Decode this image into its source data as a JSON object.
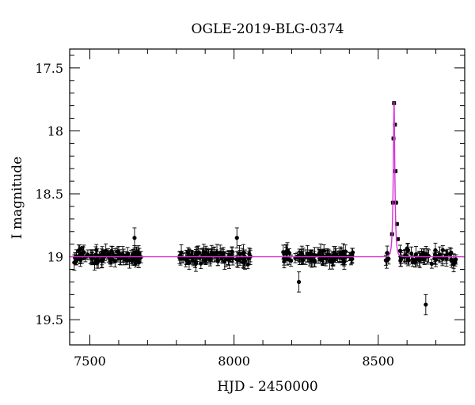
{
  "chart_data": {
    "type": "scatter",
    "title": "OGLE-2019-BLG-0374",
    "xlabel": "HJD - 2450000",
    "ylabel": "I magnitude",
    "xlim": [
      7430,
      8800
    ],
    "ylim": [
      19.7,
      17.35
    ],
    "y_inverted": true,
    "x_ticks": [
      7500,
      8000,
      8500
    ],
    "x_tick_labels": [
      "7500",
      "8000",
      "8500"
    ],
    "y_ticks": [
      17.5,
      18,
      18.5,
      19,
      19.5
    ],
    "y_tick_labels": [
      "17.5",
      "18",
      "18.5",
      "19",
      "19.5"
    ],
    "grid": false,
    "colors": {
      "points": "#000000",
      "model": "#d633d6"
    },
    "baseline_magnitude": 19.0,
    "seasons": [
      {
        "x_start": 7445,
        "x_end": 7680
      },
      {
        "x_start": 7810,
        "x_end": 8060
      },
      {
        "x_start": 8165,
        "x_end": 8420
      },
      {
        "x_start": 8525,
        "x_end": 8770
      }
    ],
    "peak_points": [
      {
        "x": 8548,
        "y": 18.82
      },
      {
        "x": 8551,
        "y": 18.57
      },
      {
        "x": 8553,
        "y": 18.06
      },
      {
        "x": 8555,
        "y": 17.78
      },
      {
        "x": 8558,
        "y": 17.95
      },
      {
        "x": 8560,
        "y": 18.32
      },
      {
        "x": 8562,
        "y": 18.57
      },
      {
        "x": 8565,
        "y": 18.74
      },
      {
        "x": 8568,
        "y": 18.86
      }
    ],
    "outlier_points": [
      {
        "x": 8665,
        "y": 19.38
      },
      {
        "x": 8225,
        "y": 19.2
      },
      {
        "x": 7655,
        "y": 18.85
      },
      {
        "x": 8010,
        "y": 18.85
      }
    ],
    "model": {
      "baseline": 19.0,
      "t0": 8555,
      "peak_magnitude": 17.77,
      "tE": 5.5
    }
  }
}
